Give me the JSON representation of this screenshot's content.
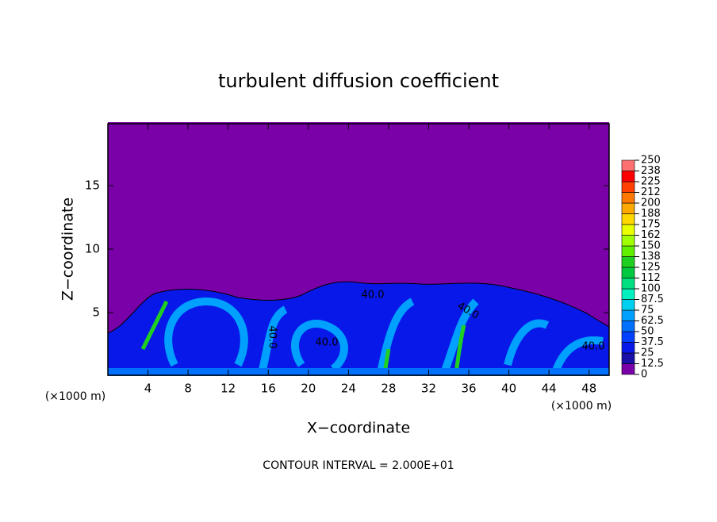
{
  "chart_data": {
    "type": "contour",
    "title": "turbulent diffusion coefficient",
    "x_label": "X−coordinate",
    "y_label": "Z−coordinate",
    "axis_unit": "(×1000 m)",
    "footer": "CONTOUR INTERVAL = 2.000E+01",
    "contour_labels": [
      "40.0",
      "40.0",
      "40.0",
      "40.0",
      "40.0"
    ],
    "xlim": [
      0,
      50
    ],
    "xticks": [
      4,
      8,
      12,
      16,
      20,
      24,
      28,
      32,
      36,
      40,
      44,
      48
    ],
    "ylim": [
      0,
      20
    ],
    "yticks": [
      5,
      10,
      15
    ],
    "colorbar": {
      "levels": [
        0,
        12.5,
        25,
        37.5,
        50,
        62.5,
        75,
        87.5,
        100,
        {
          "value": 112.5,
          "label": "112"
        },
        125,
        {
          "value": 137.5,
          "label": "138"
        },
        150,
        {
          "value": 162.5,
          "label": "162"
        },
        175,
        {
          "value": 187.5,
          "label": "188"
        },
        200,
        {
          "value": 212.5,
          "label": "212"
        },
        225,
        {
          "value": 237.5,
          "label": "238"
        },
        250
      ],
      "colors": [
        "#7a00a8",
        "#1a10a8",
        "#0818e8",
        "#0040ff",
        "#0070ff",
        "#00a0ff",
        "#00d0f0",
        "#00f0c0",
        "#00e080",
        "#00c840",
        "#20d020",
        "#60f000",
        "#a0ff00",
        "#e8ff00",
        "#ffd800",
        "#ffa800",
        "#ff7800",
        "#ff4000",
        "#ff0000",
        "#ff7070"
      ]
    }
  }
}
